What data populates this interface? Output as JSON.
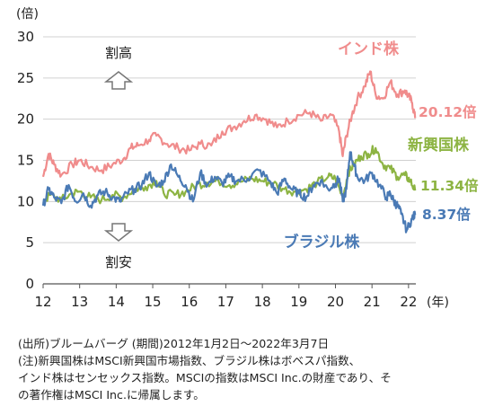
{
  "chart_data": {
    "type": "line",
    "y_unit_label": "(倍)",
    "x_unit_label": "(年)",
    "ylim": [
      0,
      30
    ],
    "yticks": [
      "0",
      "5",
      "10",
      "15",
      "20",
      "25",
      "30"
    ],
    "xlim": [
      12,
      22.2
    ],
    "xticks": [
      "12",
      "13",
      "14",
      "15",
      "16",
      "17",
      "18",
      "19",
      "20",
      "21",
      "22"
    ],
    "grid": true,
    "annotations": {
      "up_label": "割高",
      "down_label": "割安"
    },
    "series": [
      {
        "name": "インド株",
        "color": "#F08C8C",
        "end_label": "20.12倍",
        "x": [
          12.0,
          12.15,
          12.3,
          12.5,
          12.8,
          13.0,
          13.3,
          13.6,
          13.9,
          14.2,
          14.4,
          14.6,
          14.9,
          15.1,
          15.4,
          15.7,
          16.0,
          16.3,
          16.6,
          16.9,
          17.2,
          17.5,
          17.8,
          18.1,
          18.4,
          18.7,
          19.0,
          19.3,
          19.6,
          19.9,
          20.1,
          20.2,
          20.3,
          20.45,
          20.6,
          20.8,
          20.95,
          21.1,
          21.3,
          21.5,
          21.7,
          21.9,
          22.0,
          22.1,
          22.18
        ],
        "y": [
          13.0,
          15.8,
          14.5,
          13.2,
          14.5,
          15.0,
          14.2,
          13.8,
          14.5,
          15.2,
          16.5,
          16.8,
          17.5,
          18.0,
          17.0,
          16.5,
          16.2,
          17.0,
          16.8,
          18.5,
          19.0,
          19.8,
          20.5,
          20.0,
          19.0,
          19.8,
          20.5,
          20.8,
          19.8,
          20.5,
          18.5,
          15.5,
          18.0,
          20.5,
          22.5,
          24.0,
          25.8,
          23.0,
          22.5,
          24.5,
          23.0,
          23.5,
          22.8,
          22.0,
          20.12
        ]
      },
      {
        "name": "新興国株",
        "color": "#8DB443",
        "end_label": "11.34倍",
        "x": [
          12.0,
          12.2,
          12.5,
          12.8,
          13.0,
          13.3,
          13.6,
          13.9,
          14.2,
          14.5,
          14.8,
          15.1,
          15.3,
          15.6,
          15.9,
          16.2,
          16.5,
          16.8,
          17.1,
          17.4,
          17.7,
          18.0,
          18.3,
          18.6,
          18.9,
          19.2,
          19.5,
          19.8,
          20.0,
          20.2,
          20.35,
          20.5,
          20.7,
          20.9,
          21.1,
          21.3,
          21.5,
          21.7,
          21.9,
          22.05,
          22.18
        ],
        "y": [
          10.0,
          10.8,
          10.2,
          11.0,
          11.2,
          10.5,
          10.2,
          10.8,
          10.5,
          11.5,
          11.8,
          12.5,
          11.0,
          10.8,
          11.2,
          12.0,
          12.3,
          12.5,
          12.0,
          12.4,
          12.8,
          12.5,
          12.2,
          11.5,
          11.2,
          11.5,
          12.3,
          13.0,
          12.8,
          10.5,
          13.5,
          14.5,
          15.5,
          15.8,
          16.5,
          14.5,
          14.0,
          13.0,
          13.2,
          12.5,
          11.34
        ]
      },
      {
        "name": "ブラジル株",
        "color": "#4A7AB5",
        "end_label": "8.37倍",
        "x": [
          12.0,
          12.15,
          12.3,
          12.5,
          12.7,
          12.9,
          13.1,
          13.3,
          13.5,
          13.7,
          13.9,
          14.1,
          14.3,
          14.5,
          14.7,
          14.9,
          15.1,
          15.3,
          15.5,
          15.7,
          15.9,
          16.1,
          16.3,
          16.5,
          16.7,
          16.9,
          17.1,
          17.3,
          17.6,
          17.9,
          18.2,
          18.4,
          18.6,
          18.8,
          19.0,
          19.2,
          19.4,
          19.6,
          19.8,
          20.0,
          20.1,
          20.2,
          20.3,
          20.4,
          20.5,
          20.6,
          20.8,
          21.0,
          21.2,
          21.4,
          21.5,
          21.6,
          21.7,
          21.8,
          21.95,
          22.1,
          22.18
        ],
        "y": [
          9.5,
          11.5,
          10.5,
          9.8,
          12.0,
          10.0,
          11.0,
          9.5,
          10.8,
          11.2,
          10.5,
          10.0,
          11.0,
          11.5,
          12.0,
          13.5,
          11.8,
          12.5,
          14.5,
          13.0,
          12.0,
          10.0,
          13.5,
          12.0,
          13.0,
          12.2,
          13.0,
          12.5,
          12.8,
          13.8,
          12.5,
          11.0,
          12.8,
          11.5,
          11.0,
          10.5,
          12.0,
          12.5,
          11.5,
          12.2,
          12.8,
          10.0,
          11.5,
          16.0,
          14.5,
          13.0,
          12.5,
          13.5,
          12.0,
          10.5,
          11.0,
          10.0,
          9.5,
          8.5,
          6.5,
          8.0,
          8.37
        ]
      }
    ]
  },
  "notes": {
    "line1": "(出所)ブルームバーグ (期間)2012年1月2日～2022年3月7日",
    "line2": "(注)新興国株はMSCI新興国市場指数、ブラジル株はボベスパ指数、",
    "line3": "インド株はセンセックス指数。MSCIの指数はMSCI Inc.の財産であり、そ",
    "line4": "の著作権はMSCI Inc.に帰属します。"
  }
}
